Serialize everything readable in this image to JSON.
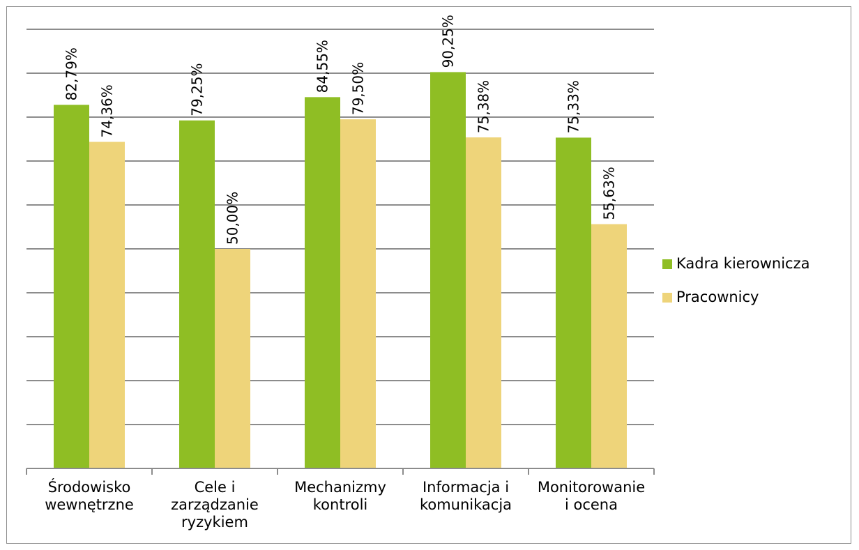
{
  "chart_data": {
    "type": "bar",
    "categories": [
      [
        "Środowisko",
        "wewnętrzne"
      ],
      [
        "Cele i",
        "zarządzanie",
        "ryzykiem"
      ],
      [
        "Mechanizmy",
        "kontroli"
      ],
      [
        "Informacja i",
        "komunikacja"
      ],
      [
        "Monitorowanie",
        "i ocena"
      ]
    ],
    "series": [
      {
        "name": "Kadra kierownicza",
        "color": "#8fbe24",
        "values": [
          82.79,
          79.25,
          84.55,
          90.25,
          75.33
        ],
        "labels": [
          "82,79%",
          "79,25%",
          "84,55%",
          "90,25%",
          "75,33%"
        ]
      },
      {
        "name": "Pracownicy",
        "color": "#eed47a",
        "values": [
          74.36,
          50.0,
          79.5,
          75.38,
          55.63
        ],
        "labels": [
          "74,36%",
          "50,00%",
          "79,50%",
          "75,38%",
          "55,63%"
        ]
      }
    ],
    "ylim": [
      0,
      100
    ],
    "y_tick_step": 10,
    "y_tick_labels_shown": false,
    "grid": true,
    "legend_position": "right"
  }
}
